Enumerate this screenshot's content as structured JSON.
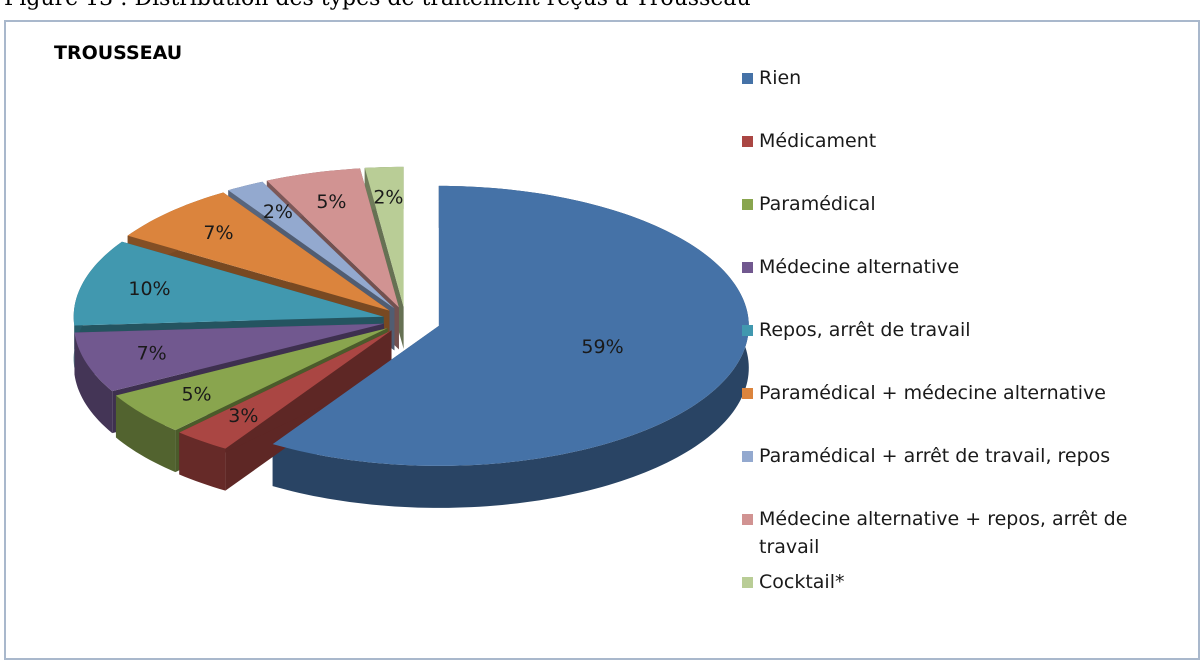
{
  "chart_data": {
    "type": "pie",
    "caption": "Figure 13 : Distribution des types de traitement reçus à Trousseau",
    "title": "TROUSSEAU",
    "categories": [
      "Rien",
      "Médicament",
      "Paramédical",
      "Médecine alternative",
      "Repos, arrêt de travail",
      "Paramédical + médecine alternative",
      "Paramédical + arrêt de travail, repos",
      "Médecine alternative + repos, arrêt de travail",
      "Cocktail*"
    ],
    "values": [
      59,
      3,
      5,
      7,
      10,
      7,
      2,
      5,
      2
    ],
    "value_labels": [
      "59%",
      "3%",
      "5%",
      "7%",
      "10%",
      "7%",
      "2%",
      "5%",
      "2%"
    ],
    "colors": [
      "#4572a7",
      "#aa4643",
      "#89a54e",
      "#71588f",
      "#4198af",
      "#db843d",
      "#93a9cf",
      "#d19392",
      "#b9cd96"
    ],
    "legend": "right"
  }
}
